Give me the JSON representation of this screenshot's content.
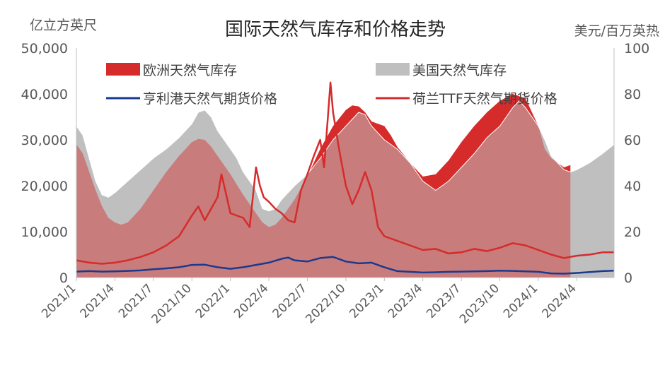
{
  "chart_data": {
    "type": "area",
    "title": "国际天然气库存和价格走势",
    "left_unit": "亿立方英尺",
    "right_unit": "美元/百万英热",
    "left_axis": {
      "min": 0,
      "max": 50000,
      "ticks": [
        "0",
        "10,000",
        "20,000",
        "30,000",
        "40,000",
        "50,000"
      ],
      "tick_values": [
        0,
        10000,
        20000,
        30000,
        40000,
        50000
      ]
    },
    "right_axis": {
      "min": 0,
      "max": 100,
      "ticks": [
        "0",
        "20",
        "40",
        "60",
        "80",
        "100"
      ],
      "tick_values": [
        0,
        20,
        40,
        60,
        80,
        100
      ]
    },
    "x_axis": {
      "tick_labels": [
        "2021/1",
        "2021/4",
        "2021/7",
        "2021/10",
        "2022/1",
        "2022/4",
        "2022/7",
        "2022/10",
        "2023/1",
        "2023/4",
        "2023/7",
        "2023/10",
        "2024/1",
        "2024/4"
      ],
      "tick_months": [
        0,
        3,
        6,
        9,
        12,
        15,
        18,
        21,
        24,
        27,
        30,
        33,
        36,
        39
      ],
      "range_months": [
        0,
        41.9
      ]
    },
    "grid": false,
    "legend_position": "top",
    "series": [
      {
        "name": "美国天然气库存",
        "type": "area",
        "axis": "left",
        "color": "#bfbfbf",
        "points": [
          [
            0,
            33000
          ],
          [
            0.5,
            31000
          ],
          [
            1,
            26000
          ],
          [
            1.5,
            21000
          ],
          [
            2,
            18000
          ],
          [
            2.5,
            17500
          ],
          [
            3,
            18500
          ],
          [
            4,
            21000
          ],
          [
            5,
            23500
          ],
          [
            6,
            26000
          ],
          [
            7,
            28000
          ],
          [
            8,
            30500
          ],
          [
            9,
            33500
          ],
          [
            9.5,
            36000
          ],
          [
            10,
            36500
          ],
          [
            10.5,
            35000
          ],
          [
            11,
            32000
          ],
          [
            12,
            28000
          ],
          [
            12.5,
            26000
          ],
          [
            13,
            23000
          ],
          [
            14,
            19000
          ],
          [
            14.5,
            15000
          ],
          [
            15,
            14500
          ],
          [
            15.5,
            15000
          ],
          [
            16,
            17000
          ],
          [
            17,
            20000
          ],
          [
            18,
            22500
          ],
          [
            19,
            26000
          ],
          [
            20,
            30000
          ],
          [
            21,
            33000
          ],
          [
            22,
            36000
          ],
          [
            22.5,
            35500
          ],
          [
            23,
            33000
          ],
          [
            24,
            30000
          ],
          [
            25,
            28000
          ],
          [
            26,
            25000
          ],
          [
            27,
            21000
          ],
          [
            28,
            19000
          ],
          [
            29,
            21000
          ],
          [
            30,
            24000
          ],
          [
            31,
            27000
          ],
          [
            32,
            30500
          ],
          [
            33,
            33000
          ],
          [
            34,
            37000
          ],
          [
            34.5,
            38500
          ],
          [
            35,
            37000
          ],
          [
            36,
            33000
          ],
          [
            36.5,
            30000
          ],
          [
            37,
            26500
          ],
          [
            38,
            23500
          ],
          [
            38.5,
            23000
          ],
          [
            39,
            23500
          ],
          [
            40,
            25000
          ],
          [
            41,
            27000
          ],
          [
            41.9,
            29000
          ]
        ]
      },
      {
        "name": "欧洲天然气库存",
        "type": "area",
        "axis": "left",
        "color": "#d62b2b",
        "points": [
          [
            0,
            29000
          ],
          [
            0.5,
            27000
          ],
          [
            1,
            23000
          ],
          [
            1.5,
            19000
          ],
          [
            2,
            15500
          ],
          [
            2.5,
            13000
          ],
          [
            3,
            12000
          ],
          [
            3.5,
            11500
          ],
          [
            4,
            12000
          ],
          [
            5,
            15000
          ],
          [
            6,
            19000
          ],
          [
            7,
            23000
          ],
          [
            8,
            26500
          ],
          [
            9,
            29500
          ],
          [
            9.5,
            30200
          ],
          [
            10,
            30000
          ],
          [
            10.5,
            28500
          ],
          [
            11,
            26500
          ],
          [
            12,
            22500
          ],
          [
            13,
            18000
          ],
          [
            14,
            14000
          ],
          [
            14.5,
            12000
          ],
          [
            15,
            11000
          ],
          [
            15.5,
            11500
          ],
          [
            16,
            13000
          ],
          [
            17,
            17000
          ],
          [
            18,
            22000
          ],
          [
            19,
            28000
          ],
          [
            20,
            33000
          ],
          [
            21,
            36500
          ],
          [
            21.5,
            37500
          ],
          [
            22,
            37300
          ],
          [
            22.5,
            36000
          ],
          [
            23,
            34000
          ],
          [
            24,
            33000
          ],
          [
            24.5,
            31000
          ],
          [
            25,
            28500
          ],
          [
            26,
            25000
          ],
          [
            27,
            22000
          ],
          [
            28,
            22500
          ],
          [
            29,
            25500
          ],
          [
            30,
            29500
          ],
          [
            31,
            33000
          ],
          [
            32,
            36000
          ],
          [
            33,
            38500
          ],
          [
            34,
            40000
          ],
          [
            35,
            39000
          ],
          [
            36,
            33000
          ],
          [
            36.5,
            28000
          ],
          [
            37,
            26000
          ],
          [
            38,
            24000
          ],
          [
            38.5,
            24500
          ]
        ]
      },
      {
        "name": "亨利港天然气期货价格",
        "type": "line",
        "axis": "right",
        "color": "#1a3a8f",
        "points": [
          [
            0,
            2.6
          ],
          [
            1,
            2.8
          ],
          [
            2,
            2.6
          ],
          [
            3,
            2.7
          ],
          [
            4,
            2.9
          ],
          [
            5,
            3.1
          ],
          [
            6,
            3.6
          ],
          [
            7,
            4.0
          ],
          [
            8,
            4.5
          ],
          [
            9,
            5.5
          ],
          [
            10,
            5.6
          ],
          [
            11,
            4.5
          ],
          [
            12,
            3.8
          ],
          [
            13,
            4.5
          ],
          [
            14,
            5.5
          ],
          [
            15,
            6.5
          ],
          [
            16,
            8.2
          ],
          [
            16.5,
            8.7
          ],
          [
            17,
            7.5
          ],
          [
            18,
            7.0
          ],
          [
            19,
            8.5
          ],
          [
            20,
            9.0
          ],
          [
            20.5,
            8.0
          ],
          [
            21,
            7.0
          ],
          [
            22,
            6.2
          ],
          [
            23,
            6.5
          ],
          [
            24,
            4.5
          ],
          [
            25,
            2.8
          ],
          [
            26,
            2.5
          ],
          [
            27,
            2.2
          ],
          [
            28,
            2.3
          ],
          [
            29,
            2.5
          ],
          [
            30,
            2.6
          ],
          [
            31,
            2.7
          ],
          [
            32,
            2.8
          ],
          [
            33,
            3.0
          ],
          [
            34,
            2.9
          ],
          [
            35,
            2.7
          ],
          [
            36,
            2.5
          ],
          [
            37,
            1.8
          ],
          [
            38,
            1.7
          ],
          [
            39,
            2.0
          ],
          [
            40,
            2.4
          ],
          [
            41,
            2.8
          ],
          [
            41.9,
            3.0
          ]
        ]
      },
      {
        "name": "荷兰TTF天然气期货价格",
        "type": "line",
        "axis": "right",
        "color": "#d62b2b",
        "points": [
          [
            0,
            7.5
          ],
          [
            1,
            6.5
          ],
          [
            2,
            6.0
          ],
          [
            3,
            6.5
          ],
          [
            4,
            7.5
          ],
          [
            5,
            9.0
          ],
          [
            6,
            11.0
          ],
          [
            7,
            14.0
          ],
          [
            8,
            18.0
          ],
          [
            9,
            27.0
          ],
          [
            9.5,
            31.0
          ],
          [
            10,
            25.0
          ],
          [
            10.5,
            30.0
          ],
          [
            11,
            35.0
          ],
          [
            11.3,
            45.0
          ],
          [
            11.6,
            38.0
          ],
          [
            12,
            28.0
          ],
          [
            13,
            26.0
          ],
          [
            13.5,
            22.0
          ],
          [
            14,
            48.0
          ],
          [
            14.3,
            40.0
          ],
          [
            14.6,
            35.0
          ],
          [
            15,
            33.0
          ],
          [
            15.5,
            30.0
          ],
          [
            16,
            28.0
          ],
          [
            16.5,
            25.0
          ],
          [
            17,
            24.0
          ],
          [
            17.5,
            38.0
          ],
          [
            18,
            45.0
          ],
          [
            18.5,
            53.0
          ],
          [
            19,
            60.0
          ],
          [
            19.3,
            48.0
          ],
          [
            19.6,
            70.0
          ],
          [
            19.8,
            85.0
          ],
          [
            20,
            72.0
          ],
          [
            20.5,
            55.0
          ],
          [
            21,
            40.0
          ],
          [
            21.5,
            32.0
          ],
          [
            22,
            38.0
          ],
          [
            22.5,
            46.0
          ],
          [
            23,
            38.0
          ],
          [
            23.5,
            22.0
          ],
          [
            24,
            18.0
          ],
          [
            25,
            16.0
          ],
          [
            26,
            14.0
          ],
          [
            27,
            12.0
          ],
          [
            28,
            12.5
          ],
          [
            29,
            10.5
          ],
          [
            30,
            11.0
          ],
          [
            31,
            12.5
          ],
          [
            32,
            11.5
          ],
          [
            33,
            13.0
          ],
          [
            34,
            15.0
          ],
          [
            35,
            14.0
          ],
          [
            36,
            12.0
          ],
          [
            37,
            10.0
          ],
          [
            38,
            8.5
          ],
          [
            39,
            9.5
          ],
          [
            40,
            10.0
          ],
          [
            41,
            11.0
          ],
          [
            41.9,
            11.0
          ]
        ]
      }
    ]
  }
}
